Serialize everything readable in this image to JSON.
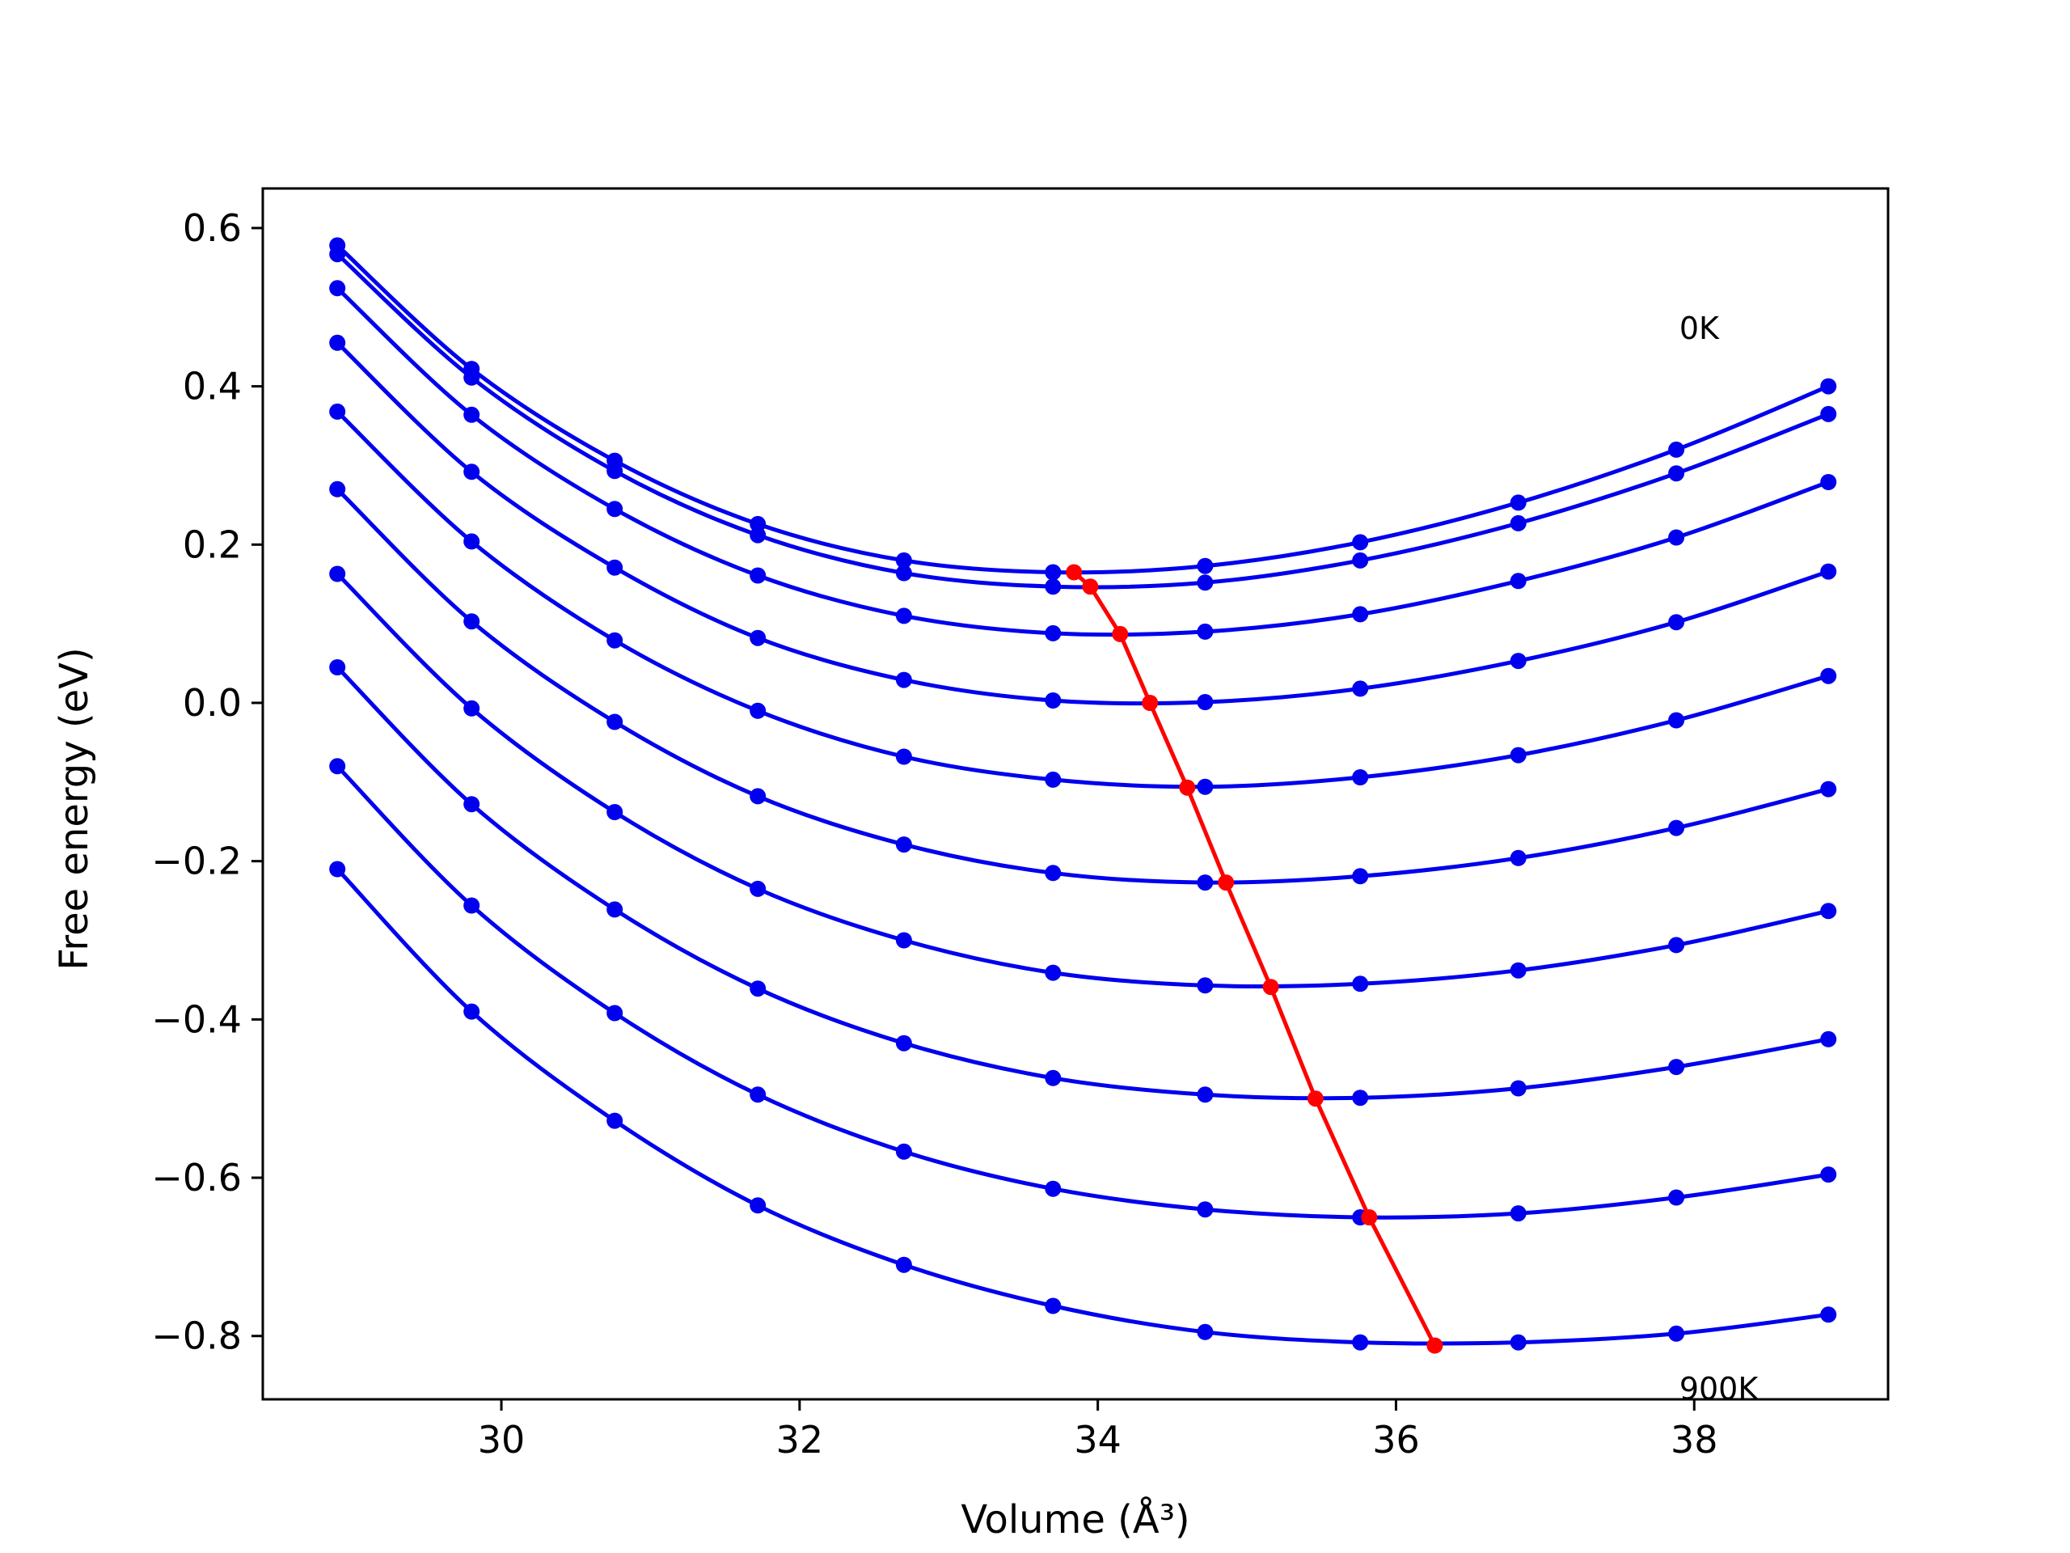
{
  "chart_data": {
    "type": "line",
    "xlabel": "Volume (Å³)",
    "ylabel": "Free energy (eV)",
    "xlim": [
      28.4,
      39.3
    ],
    "ylim": [
      -0.88,
      0.65
    ],
    "xticks": [
      30,
      32,
      34,
      36,
      38
    ],
    "yticks": [
      0.6,
      0.4,
      0.2,
      0.0,
      -0.2,
      -0.4,
      -0.6,
      -0.8
    ],
    "ytick_labels": [
      "0.6",
      "0.4",
      "0.2",
      "0.0",
      "−0.2",
      "−0.4",
      "−0.6",
      "−0.8"
    ],
    "grid": false,
    "annotations": [
      {
        "text": "0K",
        "x": 37.9,
        "y": 0.46
      },
      {
        "text": "900K",
        "x": 37.9,
        "y": -0.88
      }
    ],
    "x": [
      28.9,
      29.8,
      30.76,
      31.72,
      32.7,
      33.7,
      34.72,
      35.76,
      36.82,
      37.88,
      38.9
    ],
    "series": [
      {
        "values": [
          0.578,
          0.422,
          0.306,
          0.226,
          0.18,
          0.165,
          0.173,
          0.203,
          0.253,
          0.32,
          0.4
        ],
        "color": "#0000ee"
      },
      {
        "values": [
          0.567,
          0.411,
          0.293,
          0.212,
          0.164,
          0.147,
          0.152,
          0.18,
          0.227,
          0.29,
          0.365
        ],
        "color": "#0000ee"
      },
      {
        "values": [
          0.524,
          0.364,
          0.245,
          0.161,
          0.11,
          0.088,
          0.09,
          0.112,
          0.154,
          0.209,
          0.279
        ],
        "color": "#0000ee"
      },
      {
        "values": [
          0.455,
          0.292,
          0.171,
          0.082,
          0.029,
          0.003,
          0.001,
          0.018,
          0.053,
          0.102,
          0.166
        ],
        "color": "#0000ee"
      },
      {
        "values": [
          0.368,
          0.204,
          0.079,
          -0.01,
          -0.068,
          -0.097,
          -0.106,
          -0.094,
          -0.066,
          -0.022,
          0.034
        ],
        "color": "#0000ee"
      },
      {
        "values": [
          0.27,
          0.103,
          -0.024,
          -0.118,
          -0.179,
          -0.215,
          -0.227,
          -0.219,
          -0.196,
          -0.158,
          -0.109
        ],
        "color": "#0000ee"
      },
      {
        "values": [
          0.163,
          -0.007,
          -0.138,
          -0.235,
          -0.3,
          -0.341,
          -0.357,
          -0.355,
          -0.338,
          -0.306,
          -0.263
        ],
        "color": "#0000ee"
      },
      {
        "values": [
          0.045,
          -0.128,
          -0.261,
          -0.361,
          -0.43,
          -0.474,
          -0.495,
          -0.499,
          -0.487,
          -0.46,
          -0.425
        ],
        "color": "#0000ee"
      },
      {
        "values": [
          -0.08,
          -0.256,
          -0.392,
          -0.495,
          -0.567,
          -0.614,
          -0.64,
          -0.65,
          -0.645,
          -0.625,
          -0.596
        ],
        "color": "#0000ee"
      },
      {
        "values": [
          -0.21,
          -0.39,
          -0.528,
          -0.635,
          -0.71,
          -0.762,
          -0.795,
          -0.808,
          -0.808,
          -0.797,
          -0.773
        ],
        "color": "#0000ee"
      }
    ],
    "minimum_path": {
      "x": [
        33.84,
        33.95,
        34.15,
        34.35,
        34.6,
        34.86,
        35.16,
        35.46,
        35.82,
        36.26
      ],
      "y": [
        0.165,
        0.147,
        0.087,
        0.0,
        -0.107,
        -0.227,
        -0.359,
        -0.5,
        -0.65,
        -0.812
      ],
      "color": "#ff0000"
    }
  }
}
